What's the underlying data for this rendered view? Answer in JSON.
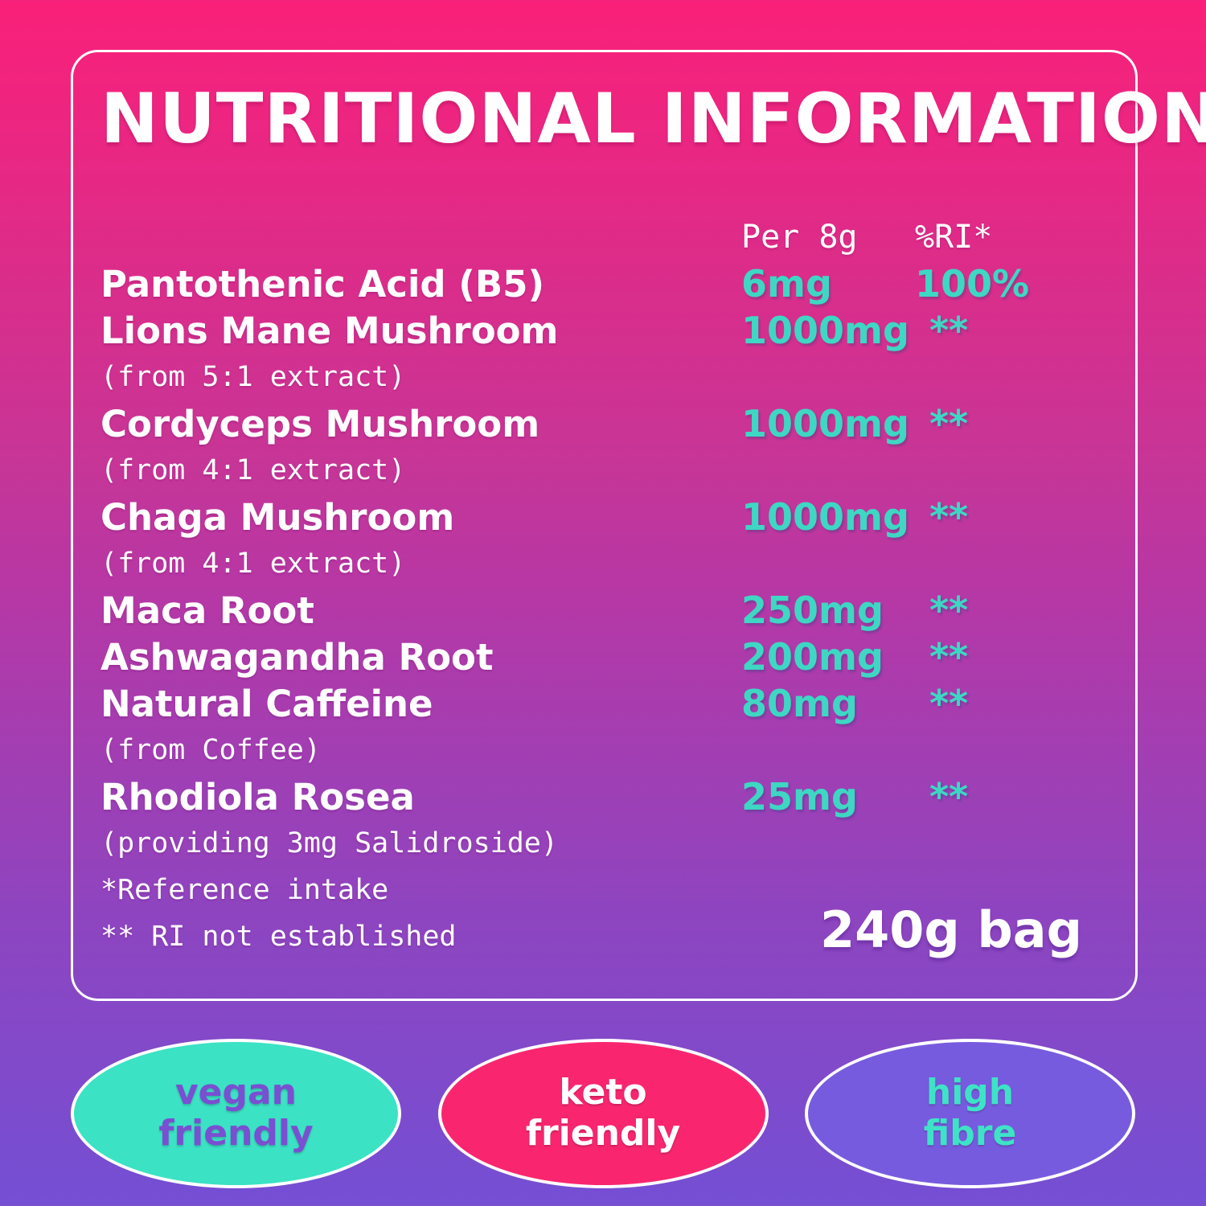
{
  "title": "NUTRITIONAL INFORMATION",
  "table": {
    "col_amount": "Per 8g",
    "col_ri": "%RI*",
    "rows": [
      {
        "name": "Pantothenic Acid (B5)",
        "amount": "6mg",
        "ri": "100%"
      },
      {
        "name": "Lions Mane Mushroom",
        "amount": "1000mg",
        "ri": "**",
        "note": "(from 5:1 extract)"
      },
      {
        "name": "Cordyceps Mushroom",
        "amount": "1000mg",
        "ri": "**",
        "note": "(from 4:1 extract)"
      },
      {
        "name": "Chaga Mushroom",
        "amount": "1000mg",
        "ri": "**",
        "note": "(from 4:1 extract)"
      },
      {
        "name": "Maca Root",
        "amount": "250mg",
        "ri": "**"
      },
      {
        "name": "Ashwagandha Root",
        "amount": "200mg",
        "ri": "**"
      },
      {
        "name": "Natural Caffeine",
        "amount": "80mg",
        "ri": "**",
        "note": "(from Coffee)"
      },
      {
        "name": "Rhodiola Rosea",
        "amount": "25mg",
        "ri": "**",
        "note": "(providing 3mg Salidroside)"
      }
    ],
    "footnote_reference": "*Reference intake",
    "footnote_ri": "** RI not established",
    "bag_label": "240g bag"
  },
  "badges": [
    {
      "line1": "vegan",
      "line2": "friendly",
      "fill": "#3be2c4",
      "text": "#7a4fd1"
    },
    {
      "line1": "keto",
      "line2": "friendly",
      "fill": "#f9266f",
      "text": "#ffffff"
    },
    {
      "line1": "high",
      "line2": "fibre",
      "fill": "#775bdf",
      "text": "#3ee3c6"
    }
  ],
  "colors": {
    "accent_teal": "#3ed7c3",
    "gradient_top": "#fa2079",
    "gradient_mid": "#b837a4",
    "gradient_bottom": "#744fd4",
    "panel_border": "#ffffff"
  }
}
